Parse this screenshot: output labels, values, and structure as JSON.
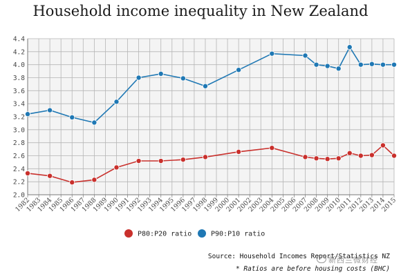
{
  "chart_data": {
    "type": "line",
    "title": "Household income inequality in New Zealand",
    "x": [
      "1982",
      "1983",
      "1984",
      "1985",
      "1986",
      "1987",
      "1988",
      "1989",
      "1990",
      "1991",
      "1992",
      "1993",
      "1994",
      "1995",
      "1996",
      "1997",
      "1998",
      "1999",
      "2000",
      "2001",
      "2002",
      "2003",
      "2004",
      "2005",
      "2006",
      "2007",
      "2008",
      "2009",
      "2010",
      "2011",
      "2012",
      "2013",
      "2014",
      "2015"
    ],
    "yticks": [
      "2.0",
      "2.2",
      "2.4",
      "2.6",
      "2.8",
      "3.0",
      "3.2",
      "3.4",
      "3.6",
      "3.8",
      "4.0",
      "4.2",
      "4.4"
    ],
    "ylim": [
      2.0,
      4.4
    ],
    "grid": true,
    "legend_position": "bottom",
    "series": [
      {
        "name": "P80:P20 ratio",
        "color": "#c9302c",
        "points": [
          {
            "x": "1982",
            "y": 2.33
          },
          {
            "x": "1984",
            "y": 2.29
          },
          {
            "x": "1986",
            "y": 2.19
          },
          {
            "x": "1988",
            "y": 2.23
          },
          {
            "x": "1990",
            "y": 2.42
          },
          {
            "x": "1992",
            "y": 2.52
          },
          {
            "x": "1994",
            "y": 2.52
          },
          {
            "x": "1996",
            "y": 2.54
          },
          {
            "x": "1998",
            "y": 2.58
          },
          {
            "x": "2001",
            "y": 2.66
          },
          {
            "x": "2004",
            "y": 2.72
          },
          {
            "x": "2007",
            "y": 2.58
          },
          {
            "x": "2008",
            "y": 2.56
          },
          {
            "x": "2009",
            "y": 2.55
          },
          {
            "x": "2010",
            "y": 2.56
          },
          {
            "x": "2011",
            "y": 2.64
          },
          {
            "x": "2012",
            "y": 2.6
          },
          {
            "x": "2013",
            "y": 2.61
          },
          {
            "x": "2014",
            "y": 2.76
          },
          {
            "x": "2015",
            "y": 2.6
          }
        ]
      },
      {
        "name": "P90:P10 ratio",
        "color": "#1f78b4",
        "points": [
          {
            "x": "1982",
            "y": 3.24
          },
          {
            "x": "1984",
            "y": 3.3
          },
          {
            "x": "1986",
            "y": 3.19
          },
          {
            "x": "1988",
            "y": 3.11
          },
          {
            "x": "1990",
            "y": 3.43
          },
          {
            "x": "1992",
            "y": 3.8
          },
          {
            "x": "1994",
            "y": 3.86
          },
          {
            "x": "1996",
            "y": 3.79
          },
          {
            "x": "1998",
            "y": 3.67
          },
          {
            "x": "2001",
            "y": 3.92
          },
          {
            "x": "2004",
            "y": 4.17
          },
          {
            "x": "2007",
            "y": 4.14
          },
          {
            "x": "2008",
            "y": 4.0
          },
          {
            "x": "2009",
            "y": 3.98
          },
          {
            "x": "2010",
            "y": 3.94
          },
          {
            "x": "2011",
            "y": 4.27
          },
          {
            "x": "2012",
            "y": 4.0
          },
          {
            "x": "2013",
            "y": 4.01
          },
          {
            "x": "2014",
            "y": 4.0
          },
          {
            "x": "2015",
            "y": 4.0
          }
        ]
      }
    ]
  },
  "footer": {
    "source": "Source: Household Incomes Report/Statistics NZ",
    "note": "* Ratios are before housing costs (BHC)"
  },
  "watermark": "新西兰微财经"
}
